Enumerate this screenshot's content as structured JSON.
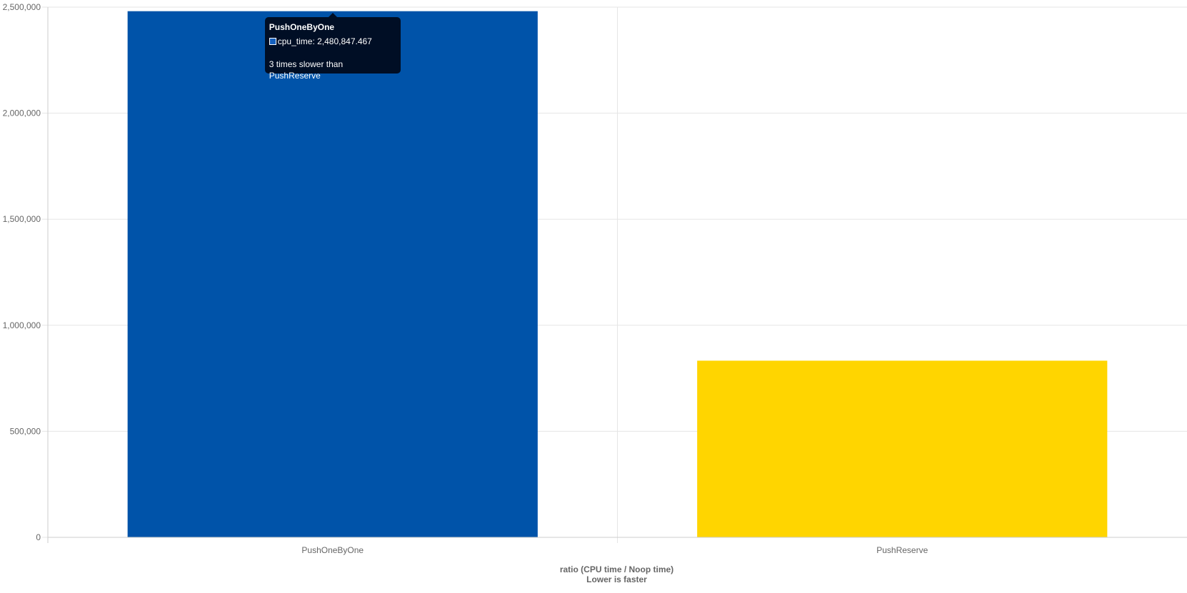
{
  "chart_data": {
    "type": "bar",
    "categories": [
      "PushOneByOne",
      "PushReserve"
    ],
    "series": [
      {
        "name": "cpu_time",
        "values": [
          2480847.467,
          833000
        ],
        "colors": [
          "#0053A9",
          "#FFD500"
        ]
      }
    ],
    "xlabel": "ratio (CPU time / Noop time)",
    "xlabel_sub": "Lower is faster",
    "ylim": [
      0,
      2500000
    ],
    "yticks": [
      0,
      500000,
      1000000,
      1500000,
      2000000,
      2500000
    ],
    "ytick_labels": [
      "0",
      "500,000",
      "1,000,000",
      "1,500,000",
      "2,000,000",
      "2,500,000"
    ],
    "grid": true
  },
  "tooltip": {
    "title": "PushOneByOne",
    "swatch_color": "#1560bd",
    "label": "cpu_time: 2,480,847.467",
    "footer": "3 times slower than PushReserve",
    "category_index": 0
  }
}
